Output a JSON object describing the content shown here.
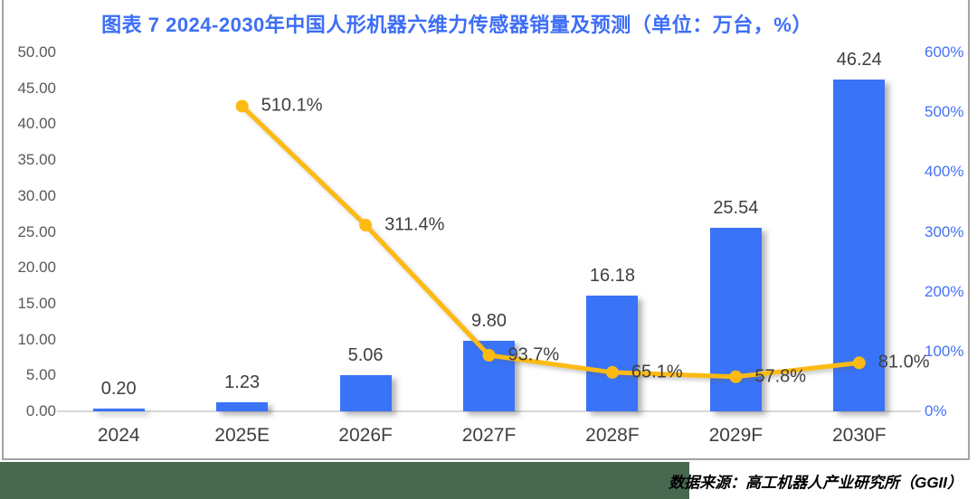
{
  "title": "图表 7 2024-2030年中国人形机器六维力传感器销量及预测（单位：万台，%）",
  "source_note": "数据来源：高工机器人产业研究所（GGII）",
  "colors": {
    "title_text": "#3d6ef6",
    "bar_fill": "#3973f8",
    "line_stroke": "#fdba12",
    "left_axis_text": "#595959",
    "right_axis_text": "#4372f5",
    "data_label_text": "#3f3f3f",
    "footer_band": "#486850",
    "chart_border": "#a3a3a3",
    "baseline": "#d7d7d7"
  },
  "chart_data": {
    "type": "bar",
    "subtype": "combo-bar-line-dual-axis",
    "title": "图表 7 2024-2030年中国人形机器六维力传感器销量及预测（单位：万台，%）",
    "categories": [
      "2024",
      "2025E",
      "2026F",
      "2027F",
      "2028F",
      "2029F",
      "2030F"
    ],
    "series": [
      {
        "id": "sales-bars",
        "type": "bar",
        "axis": "left",
        "unit": "万台",
        "values": [
          0.2,
          1.23,
          5.06,
          9.8,
          16.18,
          25.54,
          46.24
        ],
        "labels": [
          "0.20",
          "1.23",
          "5.06",
          "9.80",
          "16.18",
          "25.54",
          "46.24"
        ]
      },
      {
        "id": "growth-line",
        "type": "line",
        "axis": "right",
        "unit": "%",
        "values": [
          null,
          510.1,
          311.4,
          93.7,
          65.1,
          57.8,
          81.0
        ],
        "labels": [
          "",
          "510.1%",
          "311.4%",
          "93.7%",
          "65.1%",
          "57.8%",
          "81.0%"
        ]
      }
    ],
    "left_axis": {
      "min": 0,
      "max": 50,
      "step": 5,
      "tick_labels": [
        "50.00",
        "45.00",
        "40.00",
        "35.00",
        "30.00",
        "25.00",
        "20.00",
        "15.00",
        "10.00",
        "5.00",
        "0.00"
      ]
    },
    "right_axis": {
      "min": 0,
      "max": 600,
      "step": 100,
      "tick_labels": [
        "600%",
        "500%",
        "400%",
        "300%",
        "200%",
        "100%",
        "0%"
      ]
    },
    "grid": false,
    "legend": "none"
  }
}
